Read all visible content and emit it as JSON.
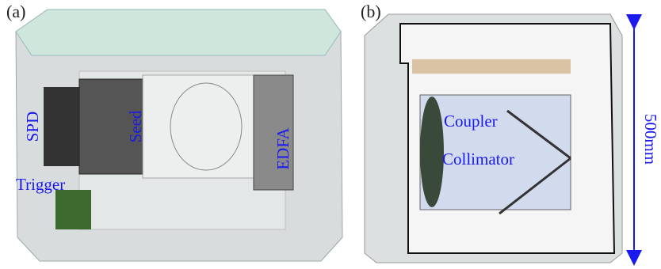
{
  "panels": [
    {
      "label": "(a)",
      "annotations": [
        "SPD",
        "Seed",
        "EDFA",
        "Trigger"
      ]
    },
    {
      "label": "(b)",
      "annotations": [
        "Coupler",
        "Collimator"
      ],
      "dimension": "500mm"
    }
  ]
}
